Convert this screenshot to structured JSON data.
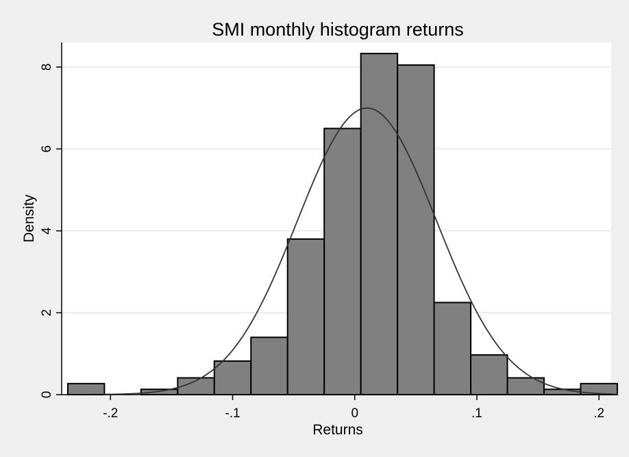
{
  "chart_data": {
    "type": "bar",
    "title": "SMI monthly histogram returns",
    "xlabel": "Returns",
    "ylabel": "Density",
    "xlim": [
      -0.24,
      0.21
    ],
    "ylim": [
      0,
      8.6
    ],
    "x_ticks": [
      {
        "value": -0.2,
        "label": "-.2"
      },
      {
        "value": -0.1,
        "label": "-.1"
      },
      {
        "value": 0,
        "label": "0"
      },
      {
        "value": 0.1,
        "label": ".1"
      },
      {
        "value": 0.2,
        "label": ".2"
      }
    ],
    "y_ticks": [
      {
        "value": 0,
        "label": "0"
      },
      {
        "value": 2,
        "label": "2"
      },
      {
        "value": 4,
        "label": "4"
      },
      {
        "value": 6,
        "label": "6"
      },
      {
        "value": 8,
        "label": "8"
      }
    ],
    "grid": true,
    "bins": [
      {
        "start": -0.235,
        "end": -0.205,
        "density": 0.27
      },
      {
        "start": -0.205,
        "end": -0.175,
        "density": 0.0
      },
      {
        "start": -0.175,
        "end": -0.145,
        "density": 0.13
      },
      {
        "start": -0.145,
        "end": -0.115,
        "density": 0.41
      },
      {
        "start": -0.115,
        "end": -0.085,
        "density": 0.82
      },
      {
        "start": -0.085,
        "end": -0.055,
        "density": 1.4
      },
      {
        "start": -0.055,
        "end": -0.025,
        "density": 3.8
      },
      {
        "start": -0.025,
        "end": 0.005,
        "density": 6.5
      },
      {
        "start": 0.005,
        "end": 0.035,
        "density": 8.33
      },
      {
        "start": 0.035,
        "end": 0.065,
        "density": 8.05
      },
      {
        "start": 0.065,
        "end": 0.095,
        "density": 2.25
      },
      {
        "start": 0.095,
        "end": 0.125,
        "density": 0.97
      },
      {
        "start": 0.125,
        "end": 0.155,
        "density": 0.41
      },
      {
        "start": 0.155,
        "end": 0.185,
        "density": 0.13
      },
      {
        "start": 0.185,
        "end": 0.215,
        "density": 0.27
      }
    ],
    "normal_curve": {
      "mean": 0.01,
      "sd": 0.057
    },
    "colors": {
      "background": "#efefef",
      "plot_background": "#ffffff",
      "bar_fill": "#808080",
      "bar_stroke": "#000000",
      "curve": "#333333",
      "grid": "#e4e4e4",
      "axis": "#000000"
    }
  }
}
